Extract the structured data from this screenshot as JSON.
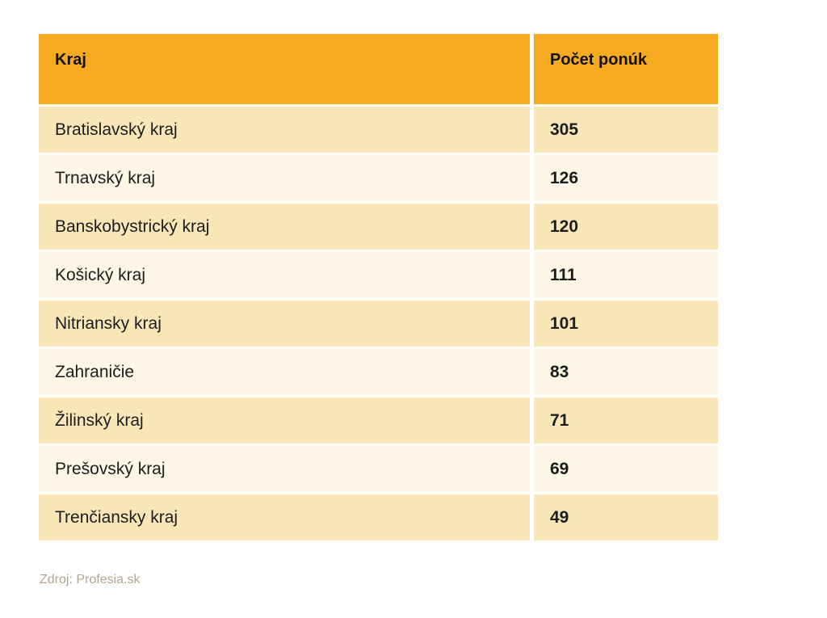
{
  "chart_data": {
    "type": "table",
    "columns": [
      "Kraj",
      "Počet ponúk"
    ],
    "rows": [
      {
        "kraj": "Bratislavský kraj",
        "pocet": "305"
      },
      {
        "kraj": "Trnavský kraj",
        "pocet": "126"
      },
      {
        "kraj": "Banskobystrický kraj",
        "pocet": "120"
      },
      {
        "kraj": "Košický kraj",
        "pocet": "111"
      },
      {
        "kraj": "Nitriansky kraj",
        "pocet": "101"
      },
      {
        "kraj": "Zahraničie",
        "pocet": "83"
      },
      {
        "kraj": "Žilinský kraj",
        "pocet": "71"
      },
      {
        "kraj": "Prešovský kraj",
        "pocet": "69"
      },
      {
        "kraj": "Trenčiansky kraj",
        "pocet": "49"
      }
    ],
    "categories": [
      "Bratislavský kraj",
      "Trnavský kraj",
      "Banskobystrický kraj",
      "Košický kraj",
      "Nitriansky kraj",
      "Zahraničie",
      "Žilinský kraj",
      "Prešovský kraj",
      "Trenčiansky kraj"
    ],
    "values": [
      305,
      126,
      120,
      111,
      101,
      83,
      71,
      69,
      49
    ],
    "source_note": "Zdroj: Profesia.sk",
    "layout": "two-column striped table, header top-aligned, values bold"
  },
  "colors": {
    "header_bg": "#F6AA20",
    "row_odd_bg": "#FAE7B8",
    "row_even_bg": "#FDF6E6",
    "header_text": "#111111",
    "row_text": "#1C1C1C",
    "source_text": "#B3A68C",
    "background": "#FFFFFF"
  }
}
